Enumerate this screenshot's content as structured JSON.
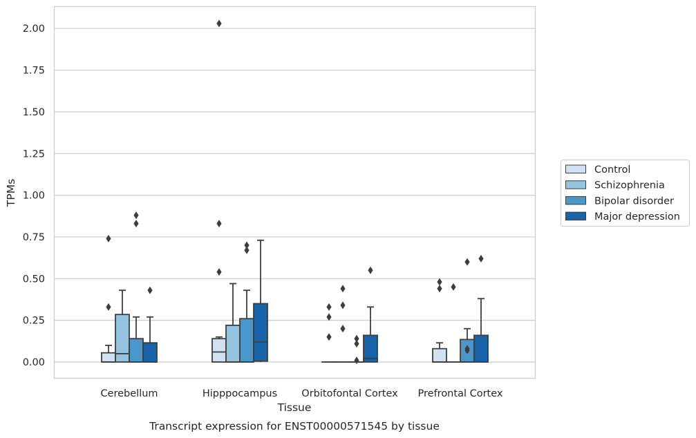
{
  "chart_data": {
    "type": "box",
    "title": "",
    "caption": "Transcript expression for ENST00000571545 by tissue",
    "xlabel": "Tissue",
    "ylabel": "TPMs",
    "ylim": [
      -0.1,
      2.13
    ],
    "yticks": [
      "0.00",
      "0.25",
      "0.50",
      "0.75",
      "1.00",
      "1.25",
      "1.50",
      "1.75",
      "2.00"
    ],
    "grid": "horizontal",
    "legend_position": "right",
    "categories": [
      "Cerebellum",
      "Hipppocampus",
      "Orbitofontal Cortex",
      "Prefrontal Cortex"
    ],
    "series": [
      {
        "name": "Control",
        "color": "#d0e1f2",
        "boxes": [
          {
            "q1": 0.0,
            "median": 0.0,
            "q3": 0.055,
            "whisker_low": 0.0,
            "whisker_high": 0.1,
            "outliers": [
              0.33,
              0.74
            ]
          },
          {
            "q1": 0.0,
            "median": 0.06,
            "q3": 0.14,
            "whisker_low": 0.0,
            "whisker_high": 0.15,
            "outliers": [
              0.54,
              0.83,
              2.03
            ]
          },
          {
            "q1": 0.0,
            "median": 0.0,
            "q3": 0.0,
            "whisker_low": 0.0,
            "whisker_high": 0.0,
            "outliers": [
              0.15,
              0.27,
              0.33
            ]
          },
          {
            "q1": 0.0,
            "median": 0.0,
            "q3": 0.08,
            "whisker_low": 0.0,
            "whisker_high": 0.115,
            "outliers": [
              0.44,
              0.48
            ]
          }
        ]
      },
      {
        "name": "Schizophrenia",
        "color": "#94c4df",
        "boxes": [
          {
            "q1": 0.0,
            "median": 0.05,
            "q3": 0.285,
            "whisker_low": 0.0,
            "whisker_high": 0.43,
            "outliers": []
          },
          {
            "q1": 0.0,
            "median": 0.0,
            "q3": 0.22,
            "whisker_low": 0.0,
            "whisker_high": 0.47,
            "outliers": []
          },
          {
            "q1": 0.0,
            "median": 0.0,
            "q3": 0.0,
            "whisker_low": 0.0,
            "whisker_high": 0.0,
            "outliers": [
              0.2,
              0.34,
              0.44
            ]
          },
          {
            "q1": 0.0,
            "median": 0.0,
            "q3": 0.0,
            "whisker_low": 0.0,
            "whisker_high": 0.0,
            "outliers": [
              0.45
            ]
          }
        ]
      },
      {
        "name": "Bipolar disorder",
        "color": "#4a98c9",
        "boxes": [
          {
            "q1": 0.0,
            "median": 0.0,
            "q3": 0.14,
            "whisker_low": 0.0,
            "whisker_high": 0.27,
            "outliers": [
              0.83,
              0.88
            ]
          },
          {
            "q1": 0.0,
            "median": 0.0,
            "q3": 0.26,
            "whisker_low": 0.0,
            "whisker_high": 0.43,
            "outliers": [
              0.67,
              0.7
            ]
          },
          {
            "q1": 0.0,
            "median": 0.0,
            "q3": 0.0,
            "whisker_low": 0.0,
            "whisker_high": 0.0,
            "outliers": [
              0.01,
              0.11,
              0.14
            ]
          },
          {
            "q1": 0.0,
            "median": 0.0,
            "q3": 0.135,
            "whisker_low": 0.0,
            "whisker_high": 0.2,
            "outliers": [
              0.07,
              0.08,
              0.6
            ]
          }
        ]
      },
      {
        "name": "Major depression",
        "color": "#1764ab",
        "boxes": [
          {
            "q1": 0.0,
            "median": 0.0,
            "q3": 0.115,
            "whisker_low": 0.0,
            "whisker_high": 0.27,
            "outliers": [
              0.43
            ]
          },
          {
            "q1": 0.005,
            "median": 0.12,
            "q3": 0.35,
            "whisker_low": 0.0,
            "whisker_high": 0.73,
            "outliers": []
          },
          {
            "q1": 0.0,
            "median": 0.02,
            "q3": 0.16,
            "whisker_low": 0.0,
            "whisker_high": 0.33,
            "outliers": [
              0.55
            ]
          },
          {
            "q1": 0.0,
            "median": 0.0,
            "q3": 0.16,
            "whisker_low": 0.0,
            "whisker_high": 0.38,
            "outliers": [
              0.62
            ]
          }
        ]
      }
    ]
  }
}
